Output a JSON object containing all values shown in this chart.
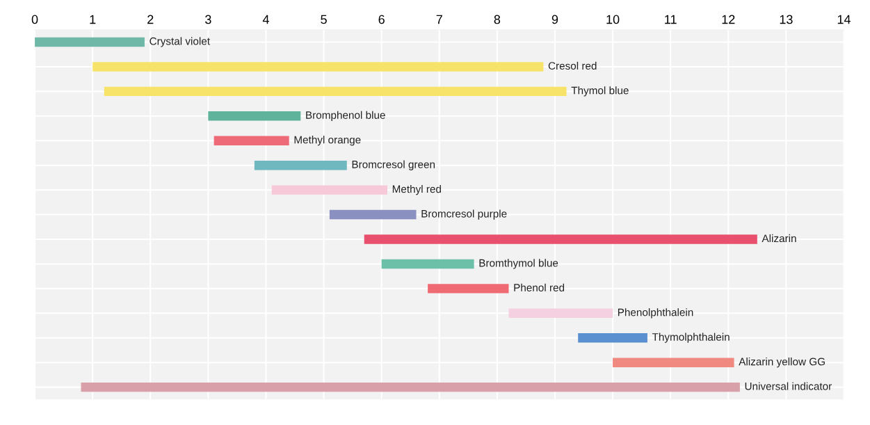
{
  "chart_data": {
    "type": "bar",
    "orientation": "horizontal",
    "categories": [
      "Crystal violet",
      "Cresol red",
      "Thymol blue",
      "Bromphenol blue",
      "Methyl orange",
      "Bromcresol green",
      "Methyl red",
      "Bromcresol purple",
      "Alizarin",
      "Bromthymol blue",
      "Phenol red",
      "Phenolphthalein",
      "Thymolphthalein",
      "Alizarin yellow GG",
      "Universal indicator"
    ],
    "base": [
      0.0,
      1.0,
      1.2,
      3.0,
      3.1,
      3.8,
      4.1,
      5.1,
      5.7,
      6.0,
      6.8,
      8.2,
      9.4,
      10.0,
      0.8
    ],
    "values": [
      1.9,
      7.8,
      8.0,
      1.6,
      1.3,
      1.6,
      2.0,
      1.5,
      6.8,
      1.6,
      1.4,
      1.8,
      1.2,
      2.1,
      11.4
    ],
    "colors": [
      "#6fb8a8",
      "#f7e36a",
      "#f7e36a",
      "#5fb39a",
      "#ee6a78",
      "#6fb8c0",
      "#f7c8d8",
      "#8a90c0",
      "#e9506e",
      "#6cc0a8",
      "#ef6a72",
      "#f4d0e0",
      "#5a8fd0",
      "#f08a80",
      "#d8a0a8"
    ],
    "xlim": [
      0,
      14
    ],
    "xticks": [
      0,
      1,
      2,
      3,
      4,
      5,
      6,
      7,
      8,
      9,
      10,
      11,
      12,
      13,
      14
    ],
    "grid": true
  }
}
